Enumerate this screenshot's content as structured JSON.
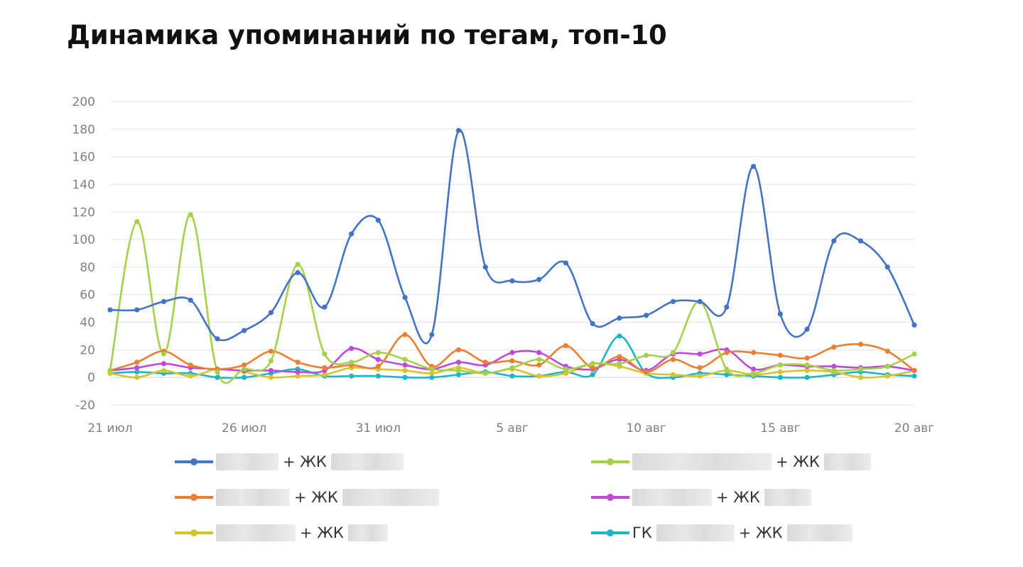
{
  "chart_data": {
    "type": "line",
    "title": "Динамика упоминаний по тегам, топ-10",
    "x_tick_labels": [
      "21 июл",
      "26 июл",
      "31 июл",
      "5 авг",
      "10 авг",
      "15 авг",
      "20 авг"
    ],
    "x_range": [
      0,
      30
    ],
    "ylim": [
      -20,
      200
    ],
    "y_ticks": [
      -20,
      0,
      20,
      40,
      60,
      80,
      100,
      120,
      140,
      160,
      180,
      200
    ],
    "grid": true,
    "legend_position": "bottom",
    "series": [
      {
        "name": "+ ЖК",
        "color": "#4472c4",
        "legend_label": "+ ЖК",
        "legend_prefix": "",
        "values": [
          49,
          49,
          55,
          56,
          28,
          34,
          47,
          76,
          51,
          104,
          114,
          58,
          31,
          179,
          80,
          70,
          71,
          83,
          39,
          43,
          45,
          55,
          55,
          51,
          153,
          46,
          35,
          99,
          99,
          80,
          38
        ]
      },
      {
        "name": "+ ЖК",
        "color": "#a5d04a",
        "legend_label": "+ ЖК",
        "legend_prefix": "",
        "values": [
          5,
          113,
          17,
          118,
          4,
          6,
          12,
          82,
          17,
          11,
          18,
          13,
          6,
          5,
          3,
          7,
          13,
          6,
          10,
          10,
          16,
          18,
          55,
          6,
          3,
          9,
          9,
          5,
          6,
          8,
          17
        ]
      },
      {
        "name": "+ ЖК",
        "color": "#ed7d31",
        "legend_label": "+ ЖК",
        "legend_prefix": "",
        "values": [
          5,
          11,
          19,
          9,
          6,
          9,
          19,
          11,
          7,
          9,
          8,
          31,
          8,
          20,
          11,
          12,
          9,
          23,
          7,
          15,
          4,
          13,
          7,
          18,
          18,
          16,
          14,
          22,
          24,
          19,
          5
        ]
      },
      {
        "name": "+ ЖК",
        "color": "#bf4ad8",
        "legend_label": "+ ЖК",
        "legend_prefix": "",
        "values": [
          5,
          7,
          10,
          7,
          6,
          5,
          5,
          4,
          5,
          21,
          13,
          9,
          6,
          11,
          9,
          18,
          18,
          8,
          6,
          13,
          5,
          17,
          17,
          20,
          6,
          9,
          8,
          8,
          7,
          8,
          5
        ]
      },
      {
        "name": "+ ЖК",
        "color": "#d6c42f",
        "legend_label": "+ ЖК",
        "legend_prefix": "",
        "values": [
          3,
          0,
          5,
          1,
          6,
          4,
          0,
          1,
          2,
          7,
          6,
          5,
          3,
          7,
          3,
          6,
          1,
          3,
          10,
          8,
          3,
          2,
          1,
          5,
          2,
          4,
          5,
          4,
          0,
          1,
          5
        ]
      },
      {
        "name": "ГК + ЖК",
        "color": "#1fb5c9",
        "legend_label": "+ ЖК",
        "legend_prefix": "ГК",
        "values": [
          3,
          4,
          3,
          3,
          0,
          0,
          3,
          6,
          1,
          1,
          1,
          0,
          0,
          2,
          4,
          1,
          1,
          4,
          2,
          30,
          3,
          0,
          3,
          2,
          1,
          0,
          0,
          2,
          4,
          2,
          1
        ]
      }
    ]
  }
}
